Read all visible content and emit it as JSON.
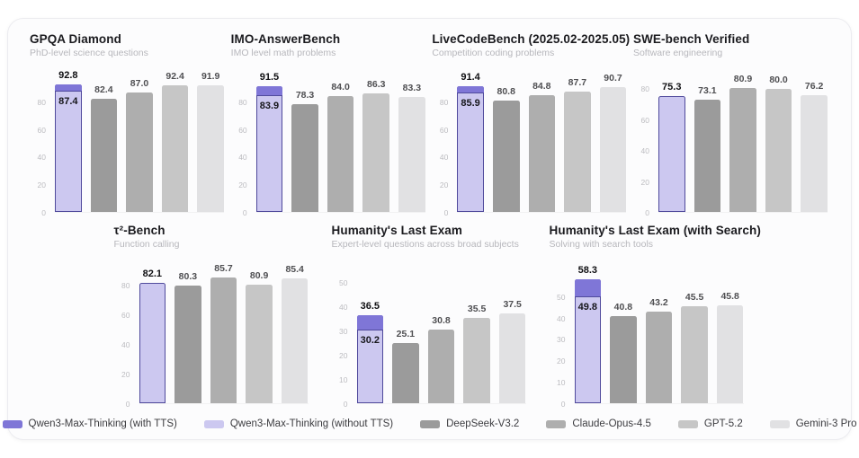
{
  "colors": {
    "qwen_with_tts": "#7f76d7",
    "qwen_without_tts": "#ccc8f0",
    "qwen_border": "#504a9c",
    "deepseek": "#9b9b9b",
    "claude": "#aeaeae",
    "gpt": "#c6c6c6",
    "gemini": "#e1e1e3",
    "card_background": "#fcfcfd",
    "title_text": "#1b1b1f",
    "subtitle_text": "#b7b7bc"
  },
  "legend": [
    {
      "label": "Qwen3-Max-Thinking (with TTS)",
      "color": "#7f76d7"
    },
    {
      "label": "Qwen3-Max-Thinking (without TTS)",
      "color": "#ccc8f0"
    },
    {
      "label": "DeepSeek-V3.2",
      "color": "#9b9b9b"
    },
    {
      "label": "Claude-Opus-4.5",
      "color": "#aeaeae"
    },
    {
      "label": "GPT-5.2",
      "color": "#c6c6c6"
    },
    {
      "label": "Gemini-3 Pro",
      "color": "#e1e1e3"
    }
  ],
  "chart_data": [
    {
      "type": "bar",
      "title": "GPQA Diamond",
      "subtitle": "PhD-level science questions",
      "categories": [
        "Qwen3-Max-Thinking",
        "DeepSeek-V3.2",
        "Claude-Opus-4.5",
        "GPT-5.2",
        "Gemini-3 Pro"
      ],
      "ylim": [
        0,
        96
      ],
      "yticks": [
        0,
        20,
        40,
        60,
        80
      ],
      "bars": [
        {
          "model": "Qwen3-Max-Thinking",
          "with_tts": 92.8,
          "without_tts": 87.4
        },
        {
          "model": "DeepSeek-V3.2",
          "value": 82.4
        },
        {
          "model": "Claude-Opus-4.5",
          "value": 87.0
        },
        {
          "model": "GPT-5.2",
          "value": 92.4
        },
        {
          "model": "Gemini-3 Pro",
          "value": 91.9
        }
      ]
    },
    {
      "type": "bar",
      "title": "IMO-AnswerBench",
      "subtitle": "IMO level math problems",
      "categories": [
        "Qwen3-Max-Thinking",
        "DeepSeek-V3.2",
        "Claude-Opus-4.5",
        "GPT-5.2",
        "Gemini-3 Pro"
      ],
      "ylim": [
        0,
        96
      ],
      "yticks": [
        0,
        20,
        40,
        60,
        80
      ],
      "bars": [
        {
          "model": "Qwen3-Max-Thinking",
          "with_tts": 91.5,
          "without_tts": 83.9
        },
        {
          "model": "DeepSeek-V3.2",
          "value": 78.3
        },
        {
          "model": "Claude-Opus-4.5",
          "value": 84.0
        },
        {
          "model": "GPT-5.2",
          "value": 86.3
        },
        {
          "model": "Gemini-3 Pro",
          "value": 83.3
        }
      ]
    },
    {
      "type": "bar",
      "title": "LiveCodeBench (2025.02-2025.05)",
      "subtitle": "Competition coding problems",
      "categories": [
        "Qwen3-Max-Thinking",
        "DeepSeek-V3.2",
        "Claude-Opus-4.5",
        "GPT-5.2",
        "Gemini-3 Pro"
      ],
      "ylim": [
        0,
        96
      ],
      "yticks": [
        0,
        20,
        40,
        60,
        80
      ],
      "bars": [
        {
          "model": "Qwen3-Max-Thinking",
          "with_tts": 91.4,
          "without_tts": 85.9
        },
        {
          "model": "DeepSeek-V3.2",
          "value": 80.8
        },
        {
          "model": "Claude-Opus-4.5",
          "value": 84.8
        },
        {
          "model": "GPT-5.2",
          "value": 87.7
        },
        {
          "model": "Gemini-3 Pro",
          "value": 90.7
        }
      ]
    },
    {
      "type": "bar",
      "title": "SWE-bench Verified",
      "subtitle": "Software engineering",
      "categories": [
        "Qwen3-Max-Thinking",
        "DeepSeek-V3.2",
        "Claude-Opus-4.5",
        "GPT-5.2",
        "Gemini-3 Pro"
      ],
      "ylim": [
        0,
        86
      ],
      "yticks": [
        0,
        20,
        40,
        60,
        80
      ],
      "bars": [
        {
          "model": "Qwen3-Max-Thinking",
          "without_tts": 75.3
        },
        {
          "model": "DeepSeek-V3.2",
          "value": 73.1
        },
        {
          "model": "Claude-Opus-4.5",
          "value": 80.9
        },
        {
          "model": "GPT-5.2",
          "value": 80.0
        },
        {
          "model": "Gemini-3 Pro",
          "value": 76.2
        }
      ]
    },
    {
      "type": "bar",
      "title": "τ²-Bench",
      "subtitle": "Function calling",
      "categories": [
        "Qwen3-Max-Thinking",
        "DeepSeek-V3.2",
        "Claude-Opus-4.5",
        "GPT-5.2",
        "Gemini-3 Pro"
      ],
      "ylim": [
        0,
        90
      ],
      "yticks": [
        0,
        20,
        40,
        60,
        80
      ],
      "bars": [
        {
          "model": "Qwen3-Max-Thinking",
          "without_tts": 82.1
        },
        {
          "model": "DeepSeek-V3.2",
          "value": 80.3
        },
        {
          "model": "Claude-Opus-4.5",
          "value": 85.7
        },
        {
          "model": "GPT-5.2",
          "value": 80.9
        },
        {
          "model": "Gemini-3 Pro",
          "value": 85.4
        }
      ]
    },
    {
      "type": "bar",
      "title": "Humanity's Last Exam",
      "subtitle": "Expert-level questions across broad subjects",
      "categories": [
        "Qwen3-Max-Thinking",
        "DeepSeek-V3.2",
        "Claude-Opus-4.5",
        "GPT-5.2",
        "Gemini-3 Pro"
      ],
      "ylim": [
        0,
        55
      ],
      "yticks": [
        0,
        10,
        20,
        30,
        40,
        50
      ],
      "bars": [
        {
          "model": "Qwen3-Max-Thinking",
          "with_tts": 36.5,
          "without_tts": 30.2
        },
        {
          "model": "DeepSeek-V3.2",
          "value": 25.1
        },
        {
          "model": "Claude-Opus-4.5",
          "value": 30.8
        },
        {
          "model": "GPT-5.2",
          "value": 35.5
        },
        {
          "model": "Gemini-3 Pro",
          "value": 37.5
        }
      ]
    },
    {
      "type": "bar",
      "title": "Humanity's Last Exam (with Search)",
      "subtitle": "Solving with search tools",
      "categories": [
        "Qwen3-Max-Thinking",
        "DeepSeek-V3.2",
        "Claude-Opus-4.5",
        "GPT-5.2",
        "Gemini-3 Pro"
      ],
      "ylim": [
        0,
        62
      ],
      "yticks": [
        0,
        10,
        20,
        30,
        40,
        50
      ],
      "bars": [
        {
          "model": "Qwen3-Max-Thinking",
          "with_tts": 58.3,
          "without_tts": 49.8
        },
        {
          "model": "DeepSeek-V3.2",
          "value": 40.8
        },
        {
          "model": "Claude-Opus-4.5",
          "value": 43.2
        },
        {
          "model": "GPT-5.2",
          "value": 45.5
        },
        {
          "model": "Gemini-3 Pro",
          "value": 45.8
        }
      ]
    }
  ]
}
